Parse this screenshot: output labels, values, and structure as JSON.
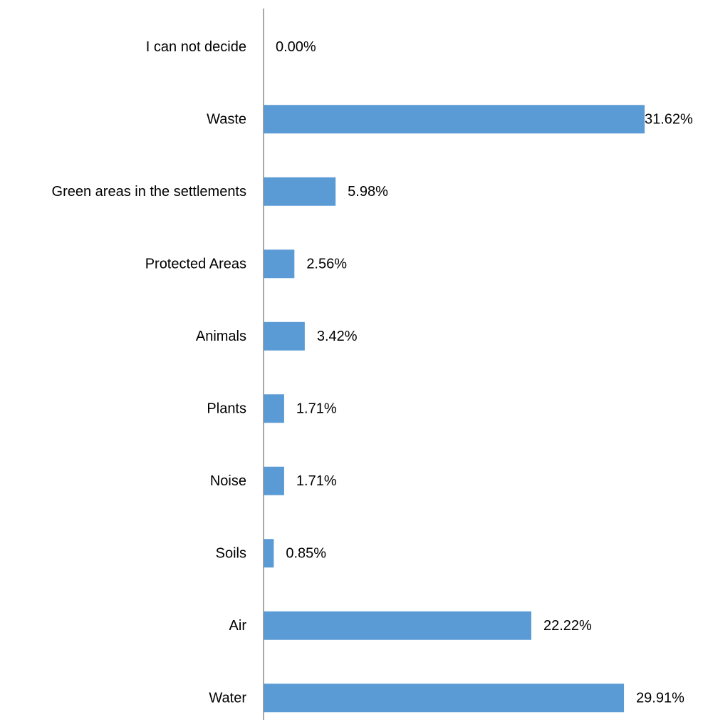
{
  "chart_data": {
    "type": "bar",
    "orientation": "horizontal",
    "title": "",
    "xlabel": "",
    "ylabel": "",
    "categories": [
      "I can not decide",
      "Waste",
      "Green areas in the settlements",
      "Protected Areas",
      "Animals",
      "Plants",
      "Noise",
      "Soils",
      "Air",
      "Water"
    ],
    "values": [
      0.0,
      31.62,
      5.98,
      2.56,
      3.42,
      1.71,
      1.71,
      0.85,
      22.22,
      29.91
    ],
    "value_labels": [
      "0.00%",
      "31.62%",
      "5.98%",
      "2.56%",
      "3.42%",
      "1.71%",
      "1.71%",
      "0.85%",
      "22.22%",
      "29.91%"
    ],
    "xlim": [
      0,
      31.62
    ],
    "bar_color": "#5b9bd5",
    "axis_color": "#8c8c8c",
    "grid": false,
    "legend": "none"
  }
}
